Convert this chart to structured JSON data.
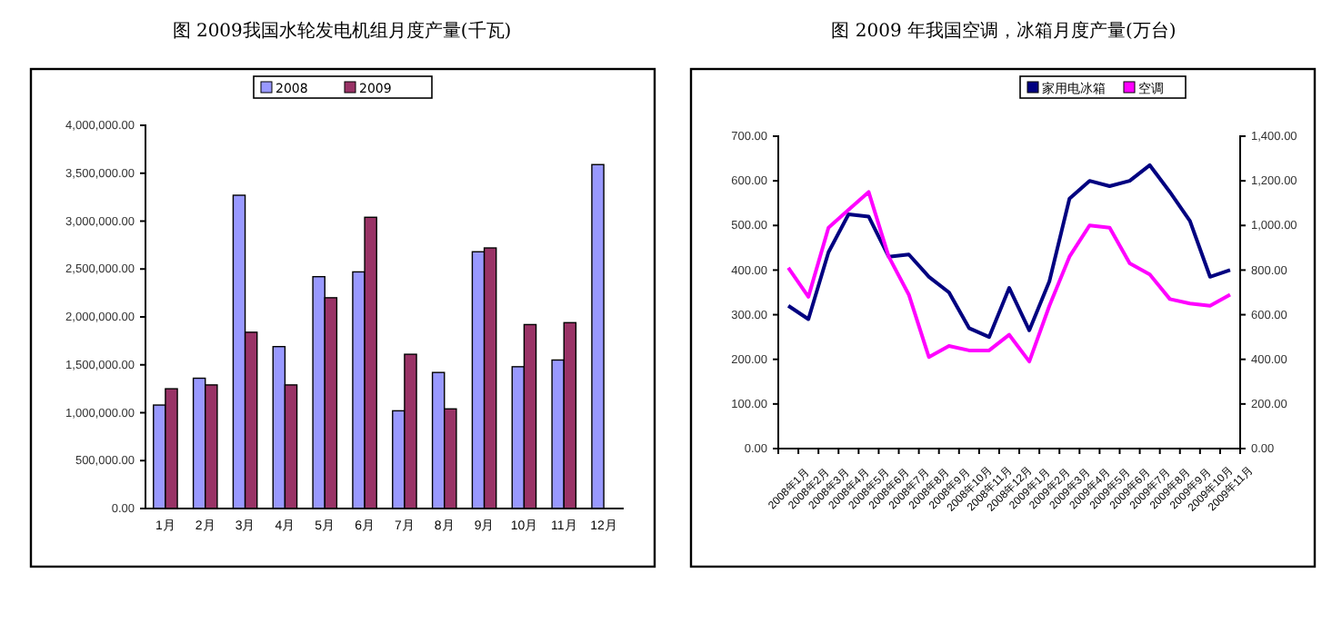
{
  "chart_data": [
    {
      "type": "bar",
      "title": "图  2009我国水轮发电机组月度产量(千瓦)",
      "categories": [
        "1月",
        "2月",
        "3月",
        "4月",
        "5月",
        "6月",
        "7月",
        "8月",
        "9月",
        "10月",
        "11月",
        "12月"
      ],
      "series": [
        {
          "name": "2008",
          "color": "#9999ff",
          "values": [
            1080000,
            1360000,
            3270000,
            1690000,
            2420000,
            2470000,
            1020000,
            1420000,
            2680000,
            1480000,
            1550000,
            3590000
          ]
        },
        {
          "name": "2009",
          "color": "#993366",
          "values": [
            1250000,
            1290000,
            1840000,
            1290000,
            2200000,
            3040000,
            1610000,
            1040000,
            2720000,
            1920000,
            1940000,
            null
          ]
        }
      ],
      "ylim": [
        0,
        4000000
      ],
      "yticks": [
        {
          "value": 0,
          "label": "0.00"
        },
        {
          "value": 500000,
          "label": "500,000.00"
        },
        {
          "value": 1000000,
          "label": "1,000,000.00"
        },
        {
          "value": 1500000,
          "label": "1,500,000.00"
        },
        {
          "value": 2000000,
          "label": "2,000,000.00"
        },
        {
          "value": 2500000,
          "label": "2,500,000.00"
        },
        {
          "value": 3000000,
          "label": "3,000,000.00"
        },
        {
          "value": 3500000,
          "label": "3,500,000.00"
        },
        {
          "value": 4000000,
          "label": "4,000,000.00"
        }
      ],
      "legend": "top"
    },
    {
      "type": "line",
      "title": "图      2009 年我国空调，冰箱月度产量(万台)",
      "categories": [
        "2008年1月",
        "2008年2月",
        "2008年3月",
        "2008年4月",
        "2008年5月",
        "2008年6月",
        "2008年7月",
        "2008年8月",
        "2008年9月",
        "2008年10月",
        "2008年11月",
        "2008年12月",
        "2009年1月",
        "2009年2月",
        "2009年3月",
        "2009年4月",
        "2009年5月",
        "2009年6月",
        "2009年7月",
        "2009年8月",
        "2009年9月",
        "2009年10月",
        "2009年11月"
      ],
      "series": [
        {
          "name": "家用电冰箱",
          "color": "#000080",
          "values": [
            320,
            290,
            440,
            525,
            520,
            430,
            435,
            385,
            350,
            270,
            250,
            360,
            265,
            375,
            560,
            600,
            588,
            600,
            635,
            575,
            510,
            385,
            400
          ]
        },
        {
          "name": "空调",
          "color": "#ff00ff",
          "axis": "y2",
          "values": [
            810,
            680,
            990,
            1070,
            1150,
            860,
            690,
            410,
            460,
            440,
            440,
            510,
            390,
            640,
            860,
            1000,
            990,
            830,
            780,
            670,
            650,
            640,
            690
          ]
        }
      ],
      "ylim": [
        0,
        700
      ],
      "yticks": [
        {
          "value": 0,
          "label": "0.00"
        },
        {
          "value": 100,
          "label": "100.00"
        },
        {
          "value": 200,
          "label": "200.00"
        },
        {
          "value": 300,
          "label": "300.00"
        },
        {
          "value": 400,
          "label": "400.00"
        },
        {
          "value": 500,
          "label": "500.00"
        },
        {
          "value": 600,
          "label": "600.00"
        },
        {
          "value": 700,
          "label": "700.00"
        }
      ],
      "y2lim": [
        0,
        1400
      ],
      "y2ticks": [
        {
          "value": 0,
          "label": "0.00"
        },
        {
          "value": 200,
          "label": "200.00"
        },
        {
          "value": 400,
          "label": "400.00"
        },
        {
          "value": 600,
          "label": "600.00"
        },
        {
          "value": 800,
          "label": "800.00"
        },
        {
          "value": 1000,
          "label": "1,000.00"
        },
        {
          "value": 1200,
          "label": "1,200.00"
        },
        {
          "value": 1400,
          "label": "1,400.00"
        }
      ],
      "legend": "top right",
      "marker": "none",
      "line_style": "solid"
    }
  ]
}
